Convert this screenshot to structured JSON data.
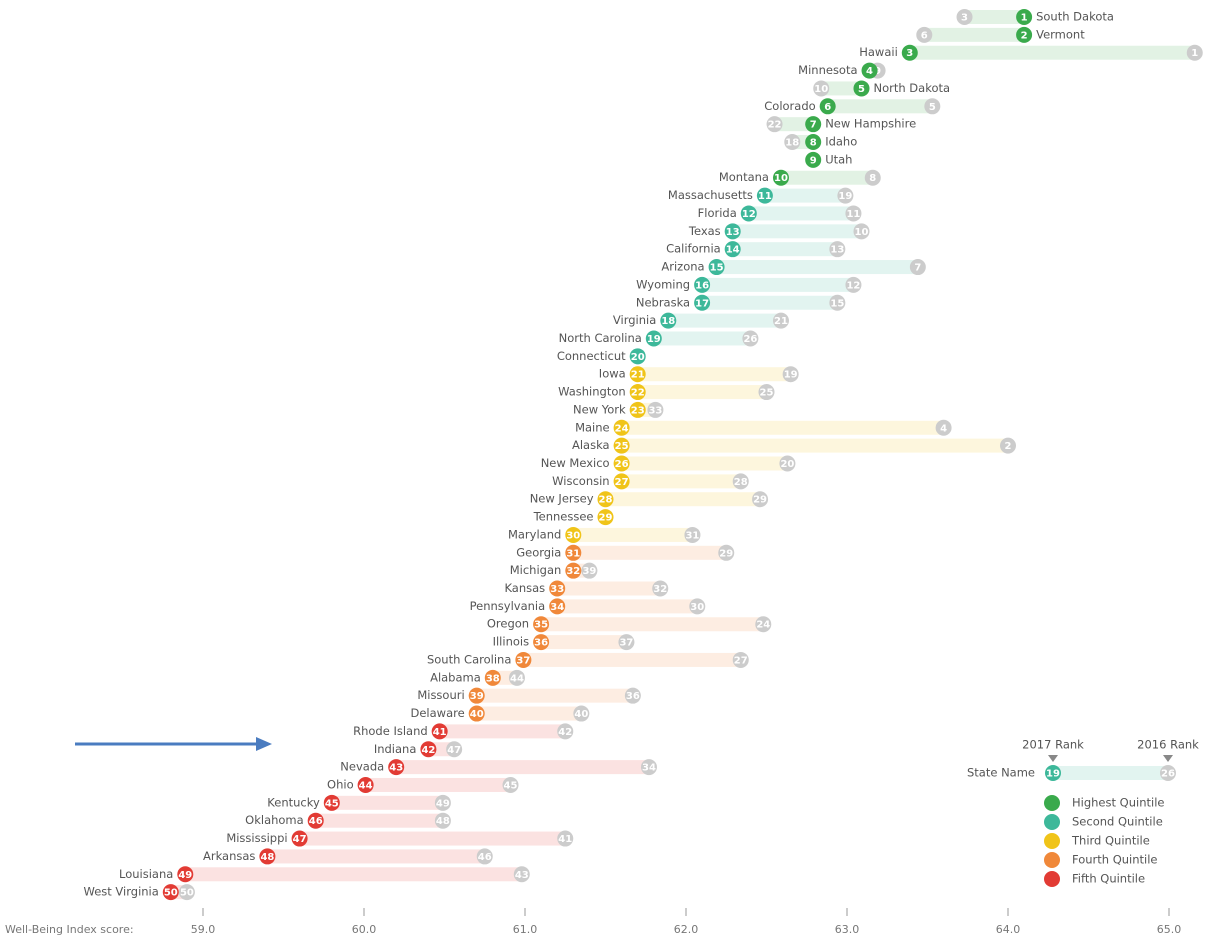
{
  "chart_data": {
    "type": "dumbbell",
    "x_label": "Well-Being Index score:",
    "xlim": [
      58.6,
      65.25
    ],
    "xticks": [
      {
        "value": 59,
        "label": "59.0"
      },
      {
        "value": 60,
        "label": "60.0"
      },
      {
        "value": 61,
        "label": "61.0"
      },
      {
        "value": 62,
        "label": "62.0"
      },
      {
        "value": 63,
        "label": "63.0"
      },
      {
        "value": 64,
        "label": "64.0"
      },
      {
        "value": 65,
        "label": "65.0"
      }
    ],
    "prior_color": "#cccccc",
    "legend": [
      {
        "name": "Highest Quintile",
        "color": "#3aaa4c"
      },
      {
        "name": "Second Quintile",
        "color": "#3db89a"
      },
      {
        "name": "Third Quintile",
        "color": "#f0c419"
      },
      {
        "name": "Fourth Quintile",
        "color": "#f0883a"
      },
      {
        "name": "Fifth Quintile",
        "color": "#e23b34"
      }
    ],
    "key": {
      "label_2017": "2017 Rank",
      "label_2016": "2016 Rank",
      "label_state": "State Name",
      "rank_2017": 19,
      "rank_2016": 26,
      "color": "#3db89a"
    },
    "rows": [
      {
        "state": "South Dakota",
        "rank_2017": 1,
        "score_2017": 64.1,
        "rank_2016": 3,
        "score_2016": 63.73,
        "color": "#3aaa4c"
      },
      {
        "state": "Vermont",
        "rank_2017": 2,
        "score_2017": 64.1,
        "rank_2016": 6,
        "score_2016": 63.48,
        "color": "#3aaa4c"
      },
      {
        "state": "Hawaii",
        "rank_2017": 3,
        "score_2017": 63.39,
        "rank_2016": 1,
        "score_2016": 65.16,
        "color": "#3aaa4c"
      },
      {
        "state": "Minnesota",
        "rank_2017": 4,
        "score_2017": 63.14,
        "rank_2016": 9,
        "score_2016": 63.19,
        "color": "#3aaa4c"
      },
      {
        "state": "North Dakota",
        "rank_2017": 5,
        "score_2017": 63.09,
        "rank_2016": 10,
        "score_2016": 62.84,
        "color": "#3aaa4c"
      },
      {
        "state": "Colorado",
        "rank_2017": 6,
        "score_2017": 62.88,
        "rank_2016": 5,
        "score_2016": 63.53,
        "color": "#3aaa4c"
      },
      {
        "state": "New Hampshire",
        "rank_2017": 7,
        "score_2017": 62.79,
        "rank_2016": 22,
        "score_2016": 62.55,
        "color": "#3aaa4c"
      },
      {
        "state": "Idaho",
        "rank_2017": 8,
        "score_2017": 62.79,
        "rank_2016": 18,
        "score_2016": 62.66,
        "color": "#3aaa4c"
      },
      {
        "state": "Utah",
        "rank_2017": 9,
        "score_2017": 62.79,
        "rank_2016": null,
        "score_2016": null,
        "color": "#3aaa4c"
      },
      {
        "state": "Montana",
        "rank_2017": 10,
        "score_2017": 62.59,
        "rank_2016": 8,
        "score_2016": 63.16,
        "color": "#3aaa4c"
      },
      {
        "state": "Massachusetts",
        "rank_2017": 11,
        "score_2017": 62.49,
        "rank_2016": 19,
        "score_2016": 62.99,
        "color": "#3db89a"
      },
      {
        "state": "Florida",
        "rank_2017": 12,
        "score_2017": 62.39,
        "rank_2016": 11,
        "score_2016": 63.04,
        "color": "#3db89a"
      },
      {
        "state": "Texas",
        "rank_2017": 13,
        "score_2017": 62.29,
        "rank_2016": 10,
        "score_2016": 63.09,
        "color": "#3db89a"
      },
      {
        "state": "California",
        "rank_2017": 14,
        "score_2017": 62.29,
        "rank_2016": 13,
        "score_2016": 62.94,
        "color": "#3db89a"
      },
      {
        "state": "Arizona",
        "rank_2017": 15,
        "score_2017": 62.19,
        "rank_2016": 7,
        "score_2016": 63.44,
        "color": "#3db89a"
      },
      {
        "state": "Wyoming",
        "rank_2017": 16,
        "score_2017": 62.1,
        "rank_2016": 12,
        "score_2016": 63.04,
        "color": "#3db89a"
      },
      {
        "state": "Nebraska",
        "rank_2017": 17,
        "score_2017": 62.1,
        "rank_2016": 15,
        "score_2016": 62.94,
        "color": "#3db89a"
      },
      {
        "state": "Virginia",
        "rank_2017": 18,
        "score_2017": 61.89,
        "rank_2016": 21,
        "score_2016": 62.59,
        "color": "#3db89a"
      },
      {
        "state": "North Carolina",
        "rank_2017": 19,
        "score_2017": 61.8,
        "rank_2016": 26,
        "score_2016": 62.4,
        "color": "#3db89a"
      },
      {
        "state": "Connecticut",
        "rank_2017": 20,
        "score_2017": 61.7,
        "rank_2016": null,
        "score_2016": null,
        "color": "#3db89a"
      },
      {
        "state": "Iowa",
        "rank_2017": 21,
        "score_2017": 61.7,
        "rank_2016": 19,
        "score_2016": 62.65,
        "color": "#f0c419"
      },
      {
        "state": "Washington",
        "rank_2017": 22,
        "score_2017": 61.7,
        "rank_2016": 25,
        "score_2016": 62.5,
        "color": "#f0c419"
      },
      {
        "state": "New York",
        "rank_2017": 23,
        "score_2017": 61.7,
        "rank_2016": 33,
        "score_2016": 61.81,
        "color": "#f0c419"
      },
      {
        "state": "Maine",
        "rank_2017": 24,
        "score_2017": 61.6,
        "rank_2016": 4,
        "score_2016": 63.6,
        "color": "#f0c419"
      },
      {
        "state": "Alaska",
        "rank_2017": 25,
        "score_2017": 61.6,
        "rank_2016": 2,
        "score_2016": 64.0,
        "color": "#f0c419"
      },
      {
        "state": "New Mexico",
        "rank_2017": 26,
        "score_2017": 61.6,
        "rank_2016": 20,
        "score_2016": 62.63,
        "color": "#f0c419"
      },
      {
        "state": "Wisconsin",
        "rank_2017": 27,
        "score_2017": 61.6,
        "rank_2016": 28,
        "score_2016": 62.34,
        "color": "#f0c419"
      },
      {
        "state": "New Jersey",
        "rank_2017": 28,
        "score_2017": 61.5,
        "rank_2016": 29,
        "score_2016": 62.46,
        "color": "#f0c419"
      },
      {
        "state": "Tennessee",
        "rank_2017": 29,
        "score_2017": 61.5,
        "rank_2016": null,
        "score_2016": null,
        "color": "#f0c419"
      },
      {
        "state": "Maryland",
        "rank_2017": 30,
        "score_2017": 61.3,
        "rank_2016": 31,
        "score_2016": 62.04,
        "color": "#f0c419"
      },
      {
        "state": "Georgia",
        "rank_2017": 31,
        "score_2017": 61.3,
        "rank_2016": 29,
        "score_2016": 62.25,
        "color": "#f0883a"
      },
      {
        "state": "Michigan",
        "rank_2017": 32,
        "score_2017": 61.3,
        "rank_2016": 39,
        "score_2016": 61.4,
        "color": "#f0883a"
      },
      {
        "state": "Kansas",
        "rank_2017": 33,
        "score_2017": 61.2,
        "rank_2016": 32,
        "score_2016": 61.84,
        "color": "#f0883a"
      },
      {
        "state": "Pennsylvania",
        "rank_2017": 34,
        "score_2017": 61.2,
        "rank_2016": 30,
        "score_2016": 62.07,
        "color": "#f0883a"
      },
      {
        "state": "Oregon",
        "rank_2017": 35,
        "score_2017": 61.1,
        "rank_2016": 24,
        "score_2016": 62.48,
        "color": "#f0883a"
      },
      {
        "state": "Illinois",
        "rank_2017": 36,
        "score_2017": 61.1,
        "rank_2016": 37,
        "score_2016": 61.63,
        "color": "#f0883a"
      },
      {
        "state": "South Carolina",
        "rank_2017": 37,
        "score_2017": 60.99,
        "rank_2016": 27,
        "score_2016": 62.34,
        "color": "#f0883a"
      },
      {
        "state": "Alabama",
        "rank_2017": 38,
        "score_2017": 60.8,
        "rank_2016": 44,
        "score_2016": 60.95,
        "color": "#f0883a"
      },
      {
        "state": "Missouri",
        "rank_2017": 39,
        "score_2017": 60.7,
        "rank_2016": 36,
        "score_2016": 61.67,
        "color": "#f0883a"
      },
      {
        "state": "Delaware",
        "rank_2017": 40,
        "score_2017": 60.7,
        "rank_2016": 40,
        "score_2016": 61.35,
        "color": "#f0883a"
      },
      {
        "state": "Rhode Island",
        "rank_2017": 41,
        "score_2017": 60.47,
        "rank_2016": 42,
        "score_2016": 61.25,
        "color": "#e23b34"
      },
      {
        "state": "Indiana",
        "rank_2017": 42,
        "score_2017": 60.4,
        "rank_2016": 47,
        "score_2016": 60.56,
        "color": "#e23b34"
      },
      {
        "state": "Nevada",
        "rank_2017": 43,
        "score_2017": 60.2,
        "rank_2016": 34,
        "score_2016": 61.77,
        "color": "#e23b34"
      },
      {
        "state": "Ohio",
        "rank_2017": 44,
        "score_2017": 60.01,
        "rank_2016": 45,
        "score_2016": 60.91,
        "color": "#e23b34"
      },
      {
        "state": "Kentucky",
        "rank_2017": 45,
        "score_2017": 59.8,
        "rank_2016": 49,
        "score_2016": 60.49,
        "color": "#e23b34"
      },
      {
        "state": "Oklahoma",
        "rank_2017": 46,
        "score_2017": 59.7,
        "rank_2016": 48,
        "score_2016": 60.49,
        "color": "#e23b34"
      },
      {
        "state": "Mississippi",
        "rank_2017": 47,
        "score_2017": 59.6,
        "rank_2016": 41,
        "score_2016": 61.25,
        "color": "#e23b34"
      },
      {
        "state": "Arkansas",
        "rank_2017": 48,
        "score_2017": 59.4,
        "rank_2016": 46,
        "score_2016": 60.75,
        "color": "#e23b34"
      },
      {
        "state": "Louisiana",
        "rank_2017": 49,
        "score_2017": 58.89,
        "rank_2016": 43,
        "score_2016": 60.98,
        "color": "#e23b34"
      },
      {
        "state": "West Virginia",
        "rank_2017": 50,
        "score_2017": 58.8,
        "rank_2016": 50,
        "score_2016": 58.9,
        "color": "#e23b34"
      }
    ]
  }
}
